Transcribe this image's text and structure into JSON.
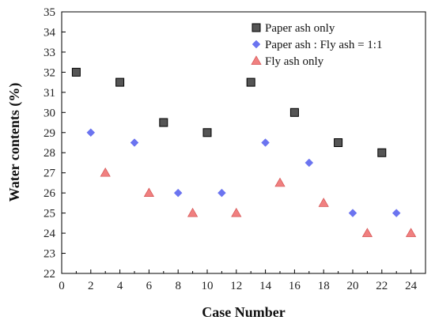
{
  "chart_data": {
    "type": "scatter",
    "xlabel": "Case Number",
    "ylabel": "Water contents (%)",
    "xlim": [
      0,
      25
    ],
    "ylim": [
      22,
      35
    ],
    "xticks": [
      "0",
      "2",
      "4",
      "6",
      "8",
      "10",
      "12",
      "14",
      "16",
      "18",
      "20",
      "22",
      "24"
    ],
    "yticks": [
      "22",
      "23",
      "24",
      "25",
      "26",
      "27",
      "28",
      "29",
      "30",
      "31",
      "32",
      "33",
      "34",
      "35"
    ],
    "grid": false,
    "legend_position": "top-right",
    "series": [
      {
        "name": "Paper ash only",
        "marker": "square",
        "color": "#555555",
        "points": [
          {
            "x": 1,
            "y": 32
          },
          {
            "x": 4,
            "y": 31.5
          },
          {
            "x": 7,
            "y": 29.5
          },
          {
            "x": 10,
            "y": 29
          },
          {
            "x": 13,
            "y": 31.5
          },
          {
            "x": 16,
            "y": 30
          },
          {
            "x": 19,
            "y": 28.5
          },
          {
            "x": 22,
            "y": 28
          }
        ]
      },
      {
        "name": "Paper ash : Fly ash = 1:1",
        "marker": "diamond",
        "color": "#6b74f0",
        "points": [
          {
            "x": 2,
            "y": 29
          },
          {
            "x": 5,
            "y": 28.5
          },
          {
            "x": 8,
            "y": 26
          },
          {
            "x": 11,
            "y": 26
          },
          {
            "x": 14,
            "y": 28.5
          },
          {
            "x": 17,
            "y": 27.5
          },
          {
            "x": 20,
            "y": 25
          },
          {
            "x": 23,
            "y": 25
          }
        ]
      },
      {
        "name": "Fly ash only",
        "marker": "triangle",
        "color": "#f08080",
        "points": [
          {
            "x": 3,
            "y": 27
          },
          {
            "x": 6,
            "y": 26
          },
          {
            "x": 9,
            "y": 25
          },
          {
            "x": 12,
            "y": 25
          },
          {
            "x": 15,
            "y": 26.5
          },
          {
            "x": 18,
            "y": 25.5
          },
          {
            "x": 21,
            "y": 24
          },
          {
            "x": 24,
            "y": 24
          }
        ]
      }
    ]
  }
}
